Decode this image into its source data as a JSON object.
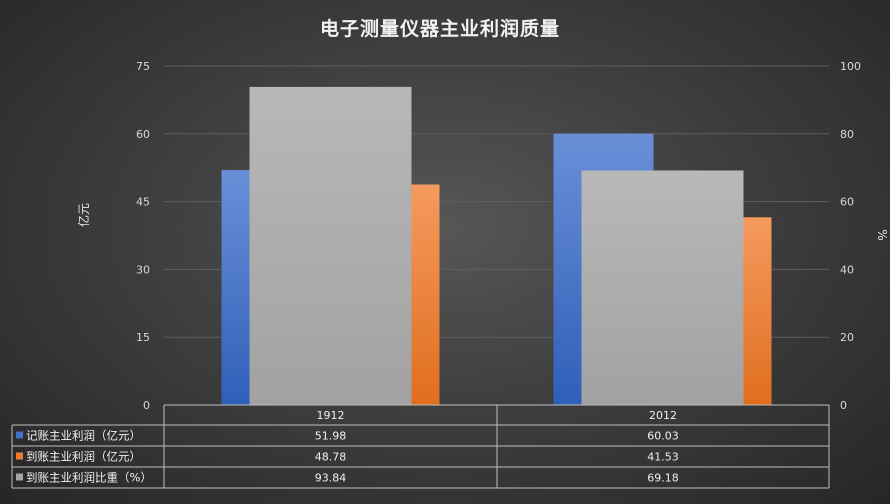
{
  "chart_data": {
    "type": "bar",
    "title": "电子测量仪器主业利润质量",
    "categories": [
      "1912",
      "2012"
    ],
    "y_left": {
      "label": "亿元",
      "range": [
        0,
        75
      ],
      "ticks": [
        "0",
        "15",
        "30",
        "45",
        "60",
        "75"
      ]
    },
    "y_right": {
      "label": "%",
      "range": [
        0,
        100
      ],
      "ticks": [
        "0",
        "20",
        "40",
        "60",
        "80",
        "100"
      ]
    },
    "grid": true,
    "legend_placement": "data-table",
    "series": [
      {
        "name": "记账主业利润（亿元）",
        "axis": "left",
        "color": "#4472c4",
        "values": [
          51.98,
          60.03
        ],
        "labels": [
          "51.98",
          "60.03"
        ]
      },
      {
        "name": "到账主业利润（亿元）",
        "axis": "left",
        "color": "#ed7d31",
        "values": [
          48.78,
          41.53
        ],
        "labels": [
          "48.78",
          "41.53"
        ]
      },
      {
        "name": "到账主业利润比重（%）",
        "axis": "right",
        "color": "#a5a5a5",
        "values": [
          93.84,
          69.18
        ],
        "labels": [
          "93.84",
          "69.18"
        ]
      }
    ]
  }
}
